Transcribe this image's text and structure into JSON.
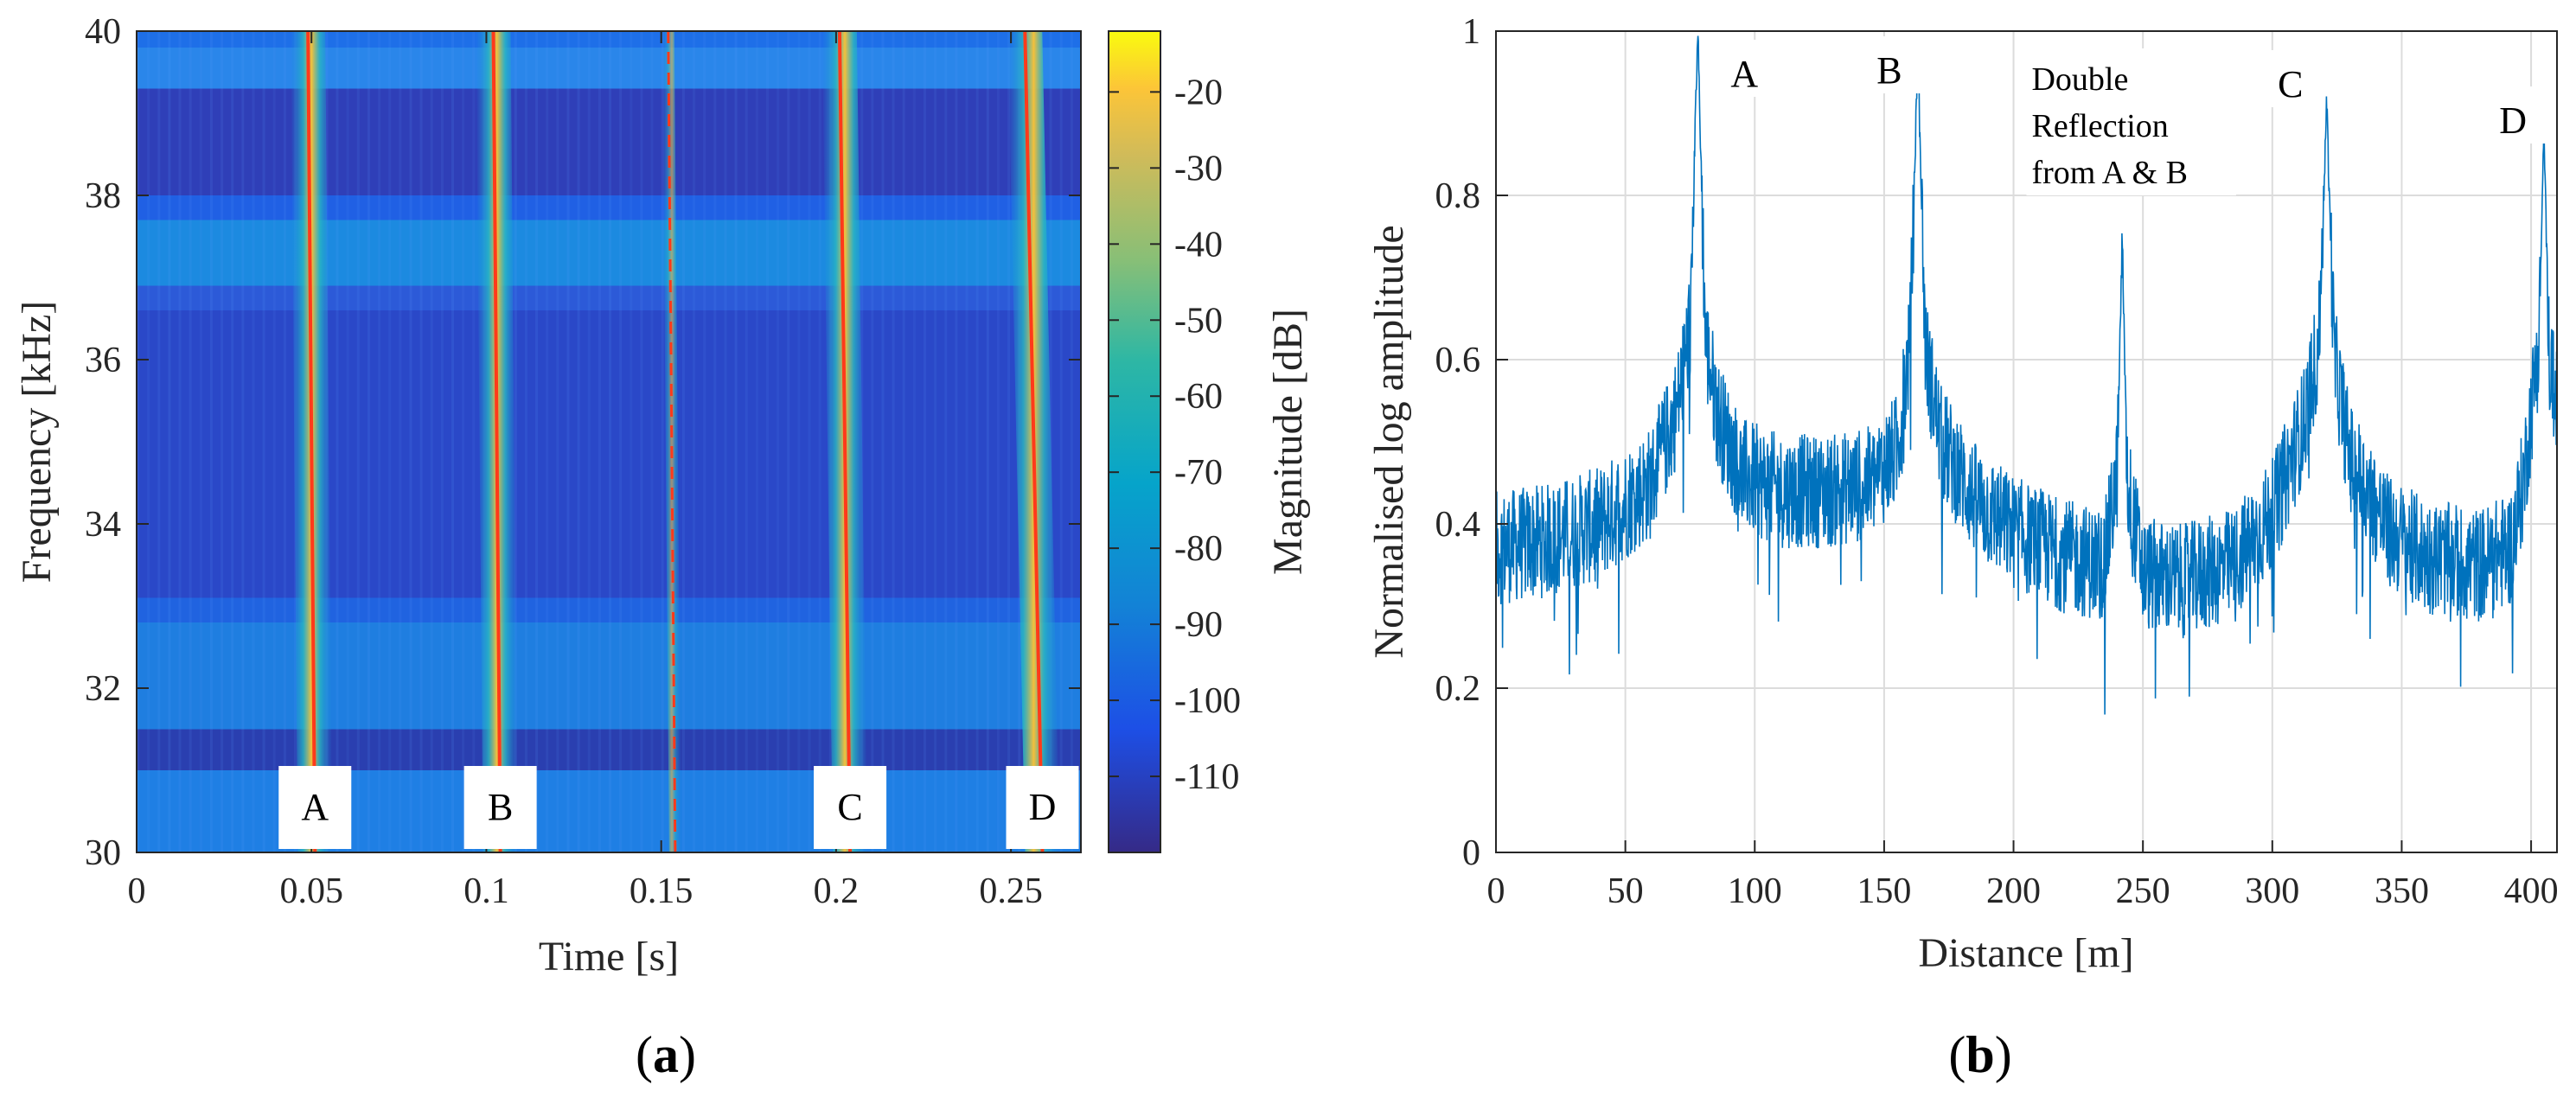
{
  "panel_labels": {
    "a_open": "(",
    "a_letter": "a",
    "a_close": ")",
    "b_open": "(",
    "b_letter": "b",
    "b_close": ")"
  },
  "colors": {
    "trace": "#0072bd",
    "ridge": "#ff3a1a",
    "grid": "#dcdcdc",
    "axis": "#262626"
  },
  "chart_data": [
    {
      "type": "heatmap",
      "title": "",
      "xlabel": "Time [s]",
      "ylabel": "Frequency [kHz]",
      "xlim": [
        0,
        0.27
      ],
      "ylim": [
        30,
        40
      ],
      "xticks": [
        0,
        0.05,
        0.1,
        0.15,
        0.2,
        0.25
      ],
      "xtick_labels": [
        "0",
        "0.05",
        "0.1",
        "0.15",
        "0.2",
        "0.25"
      ],
      "yticks": [
        30,
        32,
        34,
        36,
        38,
        40
      ],
      "ytick_labels": [
        "30",
        "32",
        "34",
        "36",
        "38",
        "40"
      ],
      "colorbar": {
        "label": "Magnitude [dB]",
        "range": [
          -120,
          -12
        ],
        "ticks": [
          -20,
          -30,
          -40,
          -50,
          -60,
          -70,
          -80,
          -90,
          -100,
          -110
        ],
        "tick_labels": [
          "-20",
          "-30",
          "-40",
          "-50",
          "-60",
          "-70",
          "-80",
          "-90",
          "-100",
          "-110"
        ]
      },
      "ridges": [
        {
          "label": "A",
          "t_start": 0.049,
          "t_end": 0.051,
          "style": "solid"
        },
        {
          "label": "B",
          "t_start": 0.102,
          "t_end": 0.104,
          "style": "solid"
        },
        {
          "label": "",
          "t_start": 0.152,
          "t_end": 0.154,
          "style": "dashed"
        },
        {
          "label": "C",
          "t_start": 0.201,
          "t_end": 0.204,
          "style": "solid"
        },
        {
          "label": "D",
          "t_start": 0.254,
          "t_end": 0.259,
          "style": "solid"
        }
      ],
      "annotations": [
        "A",
        "B",
        "C",
        "D"
      ]
    },
    {
      "type": "line",
      "title": "",
      "xlabel": "Distance [m]",
      "ylabel": "Normalised log amplitude",
      "xlim": [
        0,
        410
      ],
      "ylim": [
        0,
        1
      ],
      "grid": true,
      "xticks": [
        0,
        50,
        100,
        150,
        200,
        250,
        300,
        350,
        400
      ],
      "xtick_labels": [
        "0",
        "50",
        "100",
        "150",
        "200",
        "250",
        "300",
        "350",
        "400"
      ],
      "yticks": [
        0,
        0.2,
        0.4,
        0.6,
        0.8,
        1
      ],
      "ytick_labels": [
        "0",
        "0.2",
        "0.4",
        "0.6",
        "0.8",
        "1"
      ],
      "series": [
        {
          "name": "Normalised log amplitude",
          "x": [
            0,
            20,
            40,
            60,
            70,
            75,
            78,
            81,
            86,
            95,
            110,
            130,
            145,
            155,
            160,
            163,
            166,
            172,
            185,
            200,
            220,
            235,
            240,
            242,
            244,
            250,
            265,
            285,
            300,
            312,
            318,
            321,
            324,
            330,
            345,
            360,
            380,
            392,
            397,
            403,
            405,
            407,
            410
          ],
          "values": [
            0.37,
            0.38,
            0.4,
            0.45,
            0.54,
            0.64,
            1.0,
            0.62,
            0.53,
            0.46,
            0.44,
            0.44,
            0.45,
            0.49,
            0.62,
            0.97,
            0.61,
            0.5,
            0.43,
            0.39,
            0.36,
            0.35,
            0.46,
            0.75,
            0.45,
            0.34,
            0.33,
            0.35,
            0.41,
            0.52,
            0.62,
            0.91,
            0.6,
            0.48,
            0.39,
            0.36,
            0.35,
            0.37,
            0.45,
            0.62,
            0.88,
            0.6,
            0.55
          ]
        }
      ],
      "annotations": [
        "A",
        "B",
        "Double",
        "Reflection",
        "from A & B",
        "C",
        "D"
      ]
    }
  ]
}
